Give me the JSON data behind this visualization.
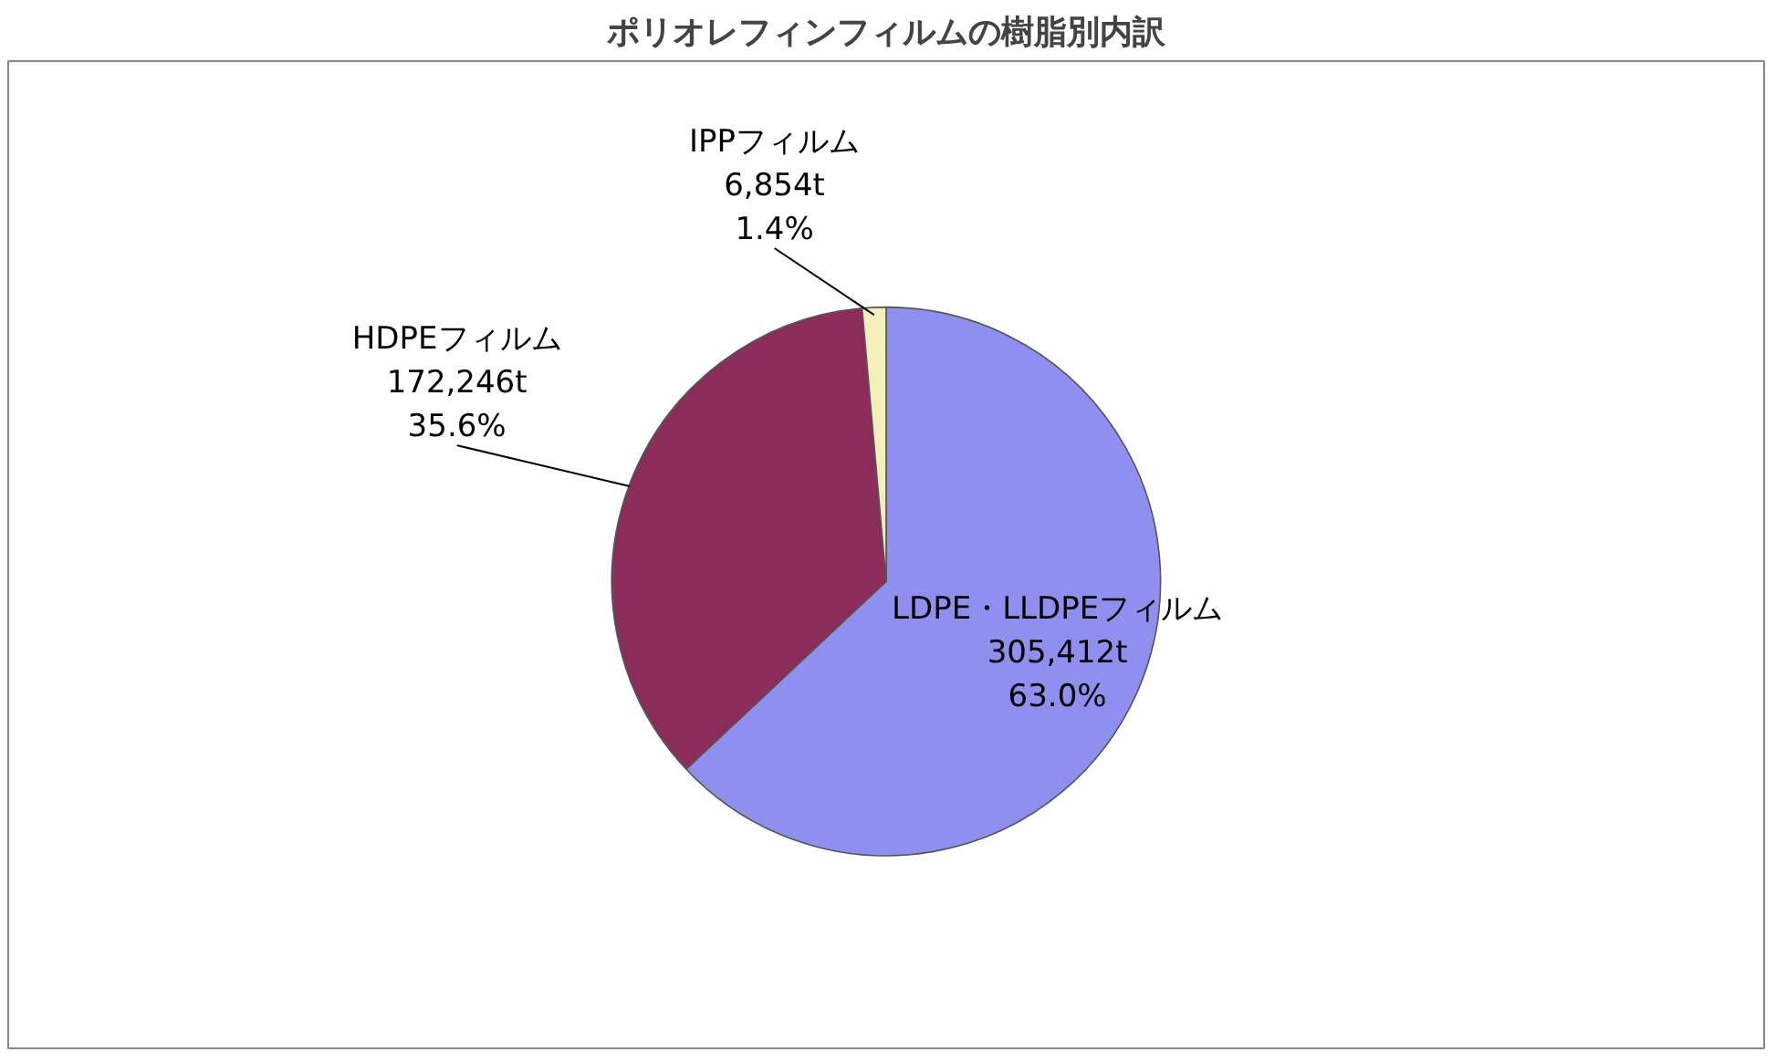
{
  "chart_data": {
    "type": "pie",
    "title": "ポリオレフィンフィルムの樹脂別内訳",
    "categories": [
      "LDPE・LLDPEフィルム",
      "HDPEフィルム",
      "IPPフィルム"
    ],
    "values": [
      63.0,
      35.6,
      1.4
    ],
    "value_labels": [
      "305,412t\n63.0%",
      "172,246t\n35.6%",
      "6,854t\n1.4%"
    ],
    "colors": [
      "#8f8ff0",
      "#8b2c5a",
      "#f2f0b8"
    ]
  }
}
